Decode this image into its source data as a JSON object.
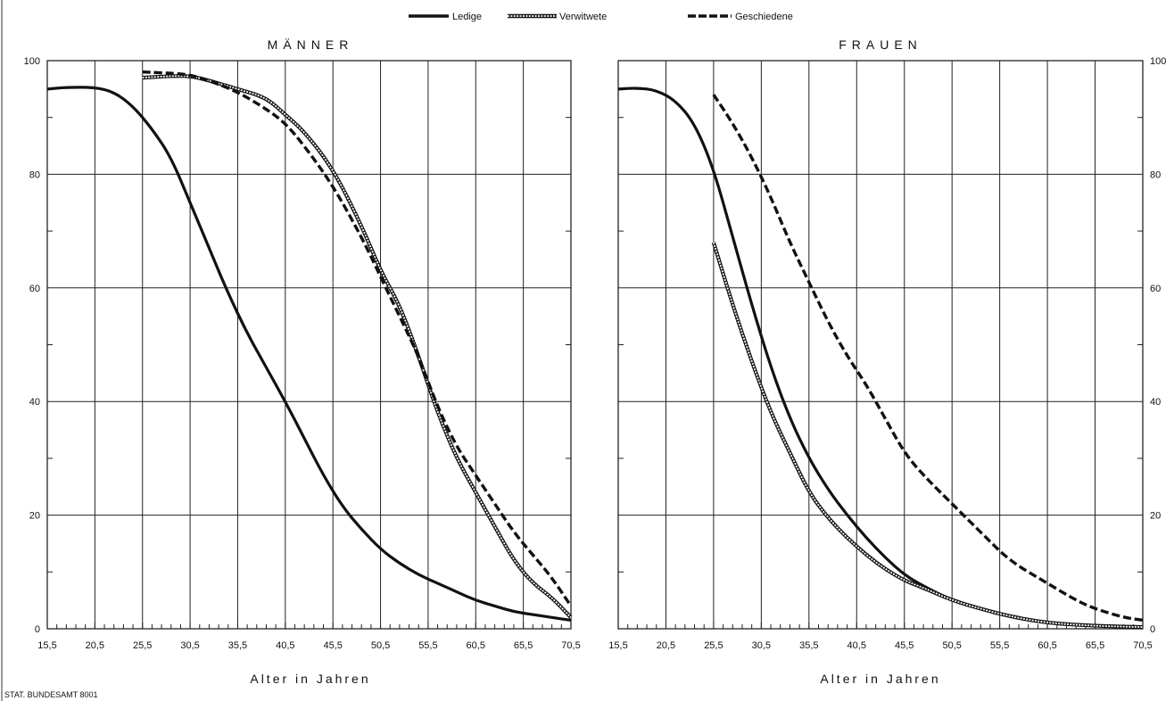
{
  "legend": {
    "entries": [
      {
        "label": "Ledige",
        "style": "solid"
      },
      {
        "label": "Verwitwete",
        "style": "hollow"
      },
      {
        "label": "Geschiedene",
        "style": "dashed"
      }
    ]
  },
  "source_note": "STAT. BUNDESAMT 8001",
  "colors": {
    "line": "#111111",
    "grid": "#222222",
    "background": "#ffffff"
  },
  "chart_data": [
    {
      "type": "line",
      "title": "MÄNNER",
      "xlabel": "Alter in Jahren",
      "ylabel": "",
      "x_ticks": [
        "15,5",
        "20,5",
        "25,5",
        "30,5",
        "35,5",
        "40,5",
        "45,5",
        "50,5",
        "55,5",
        "60,5",
        "65,5",
        "70,5"
      ],
      "y_ticks": [
        "0",
        "20",
        "40",
        "60",
        "80",
        "100"
      ],
      "y_axis_side": "left",
      "xlim": [
        15.5,
        70.5
      ],
      "ylim": [
        0,
        100
      ],
      "grid": true,
      "series": [
        {
          "name": "Ledige",
          "style": "solid",
          "x": [
            15.5,
            17.5,
            20.5,
            22.5,
            24.5,
            26.5,
            28.5,
            30.5,
            32.5,
            34.5,
            36.5,
            38.5,
            40.5,
            42.5,
            44.5,
            46.5,
            48.5,
            50.5,
            52.5,
            54.5,
            56.5,
            58.5,
            60.5,
            62.5,
            64.5,
            66.5,
            68.5,
            70.5
          ],
          "y": [
            95,
            95.3,
            95.3,
            94.5,
            92,
            88,
            83,
            75,
            67,
            59,
            52,
            46,
            40,
            33.5,
            27,
            21.5,
            17.5,
            14,
            11.5,
            9.5,
            8,
            6.5,
            5,
            4,
            3,
            2.5,
            2,
            1.5
          ]
        },
        {
          "name": "Verwitwete",
          "style": "hollow",
          "x": [
            25.5,
            28.5,
            30.5,
            32.5,
            35.5,
            38.5,
            40.5,
            42.5,
            45.5,
            48.5,
            50.5,
            52.5,
            54.5,
            56.5,
            58.5,
            60.5,
            62.5,
            64.5,
            66.5,
            68.5,
            70.5
          ],
          "y": [
            97,
            97.3,
            97.3,
            96.5,
            95,
            93.5,
            90.5,
            87.5,
            81,
            71,
            63,
            57,
            48,
            38,
            30,
            24,
            18,
            12,
            8,
            5.5,
            2
          ]
        },
        {
          "name": "Geschiedene",
          "style": "dashed",
          "x": [
            25.5,
            28.5,
            30.5,
            32.5,
            35.5,
            38.5,
            40.5,
            42.5,
            45.5,
            48.5,
            50.5,
            52.5,
            54.5,
            56.5,
            58.5,
            60.5,
            62.5,
            64.5,
            66.5,
            68.5,
            70.5
          ],
          "y": [
            98,
            97.8,
            97.5,
            96.5,
            94.5,
            91.5,
            89,
            85,
            78,
            69,
            62,
            55,
            48,
            39,
            32,
            27,
            22,
            17,
            13,
            9,
            4
          ]
        }
      ]
    },
    {
      "type": "line",
      "title": "FRAUEN",
      "xlabel": "Alter in Jahren",
      "ylabel": "",
      "x_ticks": [
        "15,5",
        "20,5",
        "25,5",
        "30,5",
        "35,5",
        "40,5",
        "45,5",
        "50,5",
        "55,5",
        "60,5",
        "65,5",
        "70,5"
      ],
      "y_ticks": [
        "0",
        "20",
        "40",
        "60",
        "80",
        "100"
      ],
      "y_axis_side": "right",
      "xlim": [
        15.5,
        70.5
      ],
      "ylim": [
        0,
        100
      ],
      "grid": true,
      "series": [
        {
          "name": "Ledige",
          "style": "solid",
          "x": [
            15.5,
            17.5,
            19.5,
            21.5,
            23.5,
            25.5,
            27.5,
            29.5,
            31.5,
            33.5,
            35.5,
            37.5,
            39.5,
            41.5,
            43.5,
            45.5,
            47.5,
            50.5,
            53.5,
            56.5,
            60.5,
            65.5,
            70.5
          ],
          "y": [
            95,
            95.2,
            94.8,
            93,
            89,
            81,
            69,
            57,
            46,
            37,
            30,
            24.5,
            20,
            16,
            12.5,
            9.5,
            7.5,
            5,
            3.5,
            2.2,
            1,
            0.5,
            0.3
          ]
        },
        {
          "name": "Verwitwete",
          "style": "hollow",
          "x": [
            25.5,
            27.5,
            29.5,
            31.5,
            33.5,
            35.5,
            37.5,
            39.5,
            41.5,
            43.5,
            45.5,
            47.5,
            50.5,
            53.5,
            56.5,
            60.5,
            65.5,
            70.5
          ],
          "y": [
            68,
            57,
            47,
            38,
            31,
            24,
            19.5,
            16,
            13,
            10.5,
            8.5,
            7.2,
            5,
            3.5,
            2.2,
            1,
            0.5,
            0.3
          ]
        },
        {
          "name": "Geschiedene",
          "style": "dashed",
          "x": [
            25.5,
            27.5,
            29.5,
            31.5,
            33.5,
            35.5,
            37.5,
            39.5,
            41.5,
            43.5,
            45.5,
            47.5,
            50.5,
            53.5,
            56.5,
            60.5,
            63.5,
            65.5,
            68.5,
            70.5
          ],
          "y": [
            94,
            89,
            83,
            76,
            68,
            61,
            54,
            48,
            43,
            37,
            31,
            27,
            22,
            17,
            12,
            8,
            5,
            3.5,
            2,
            1.5
          ]
        }
      ]
    }
  ]
}
